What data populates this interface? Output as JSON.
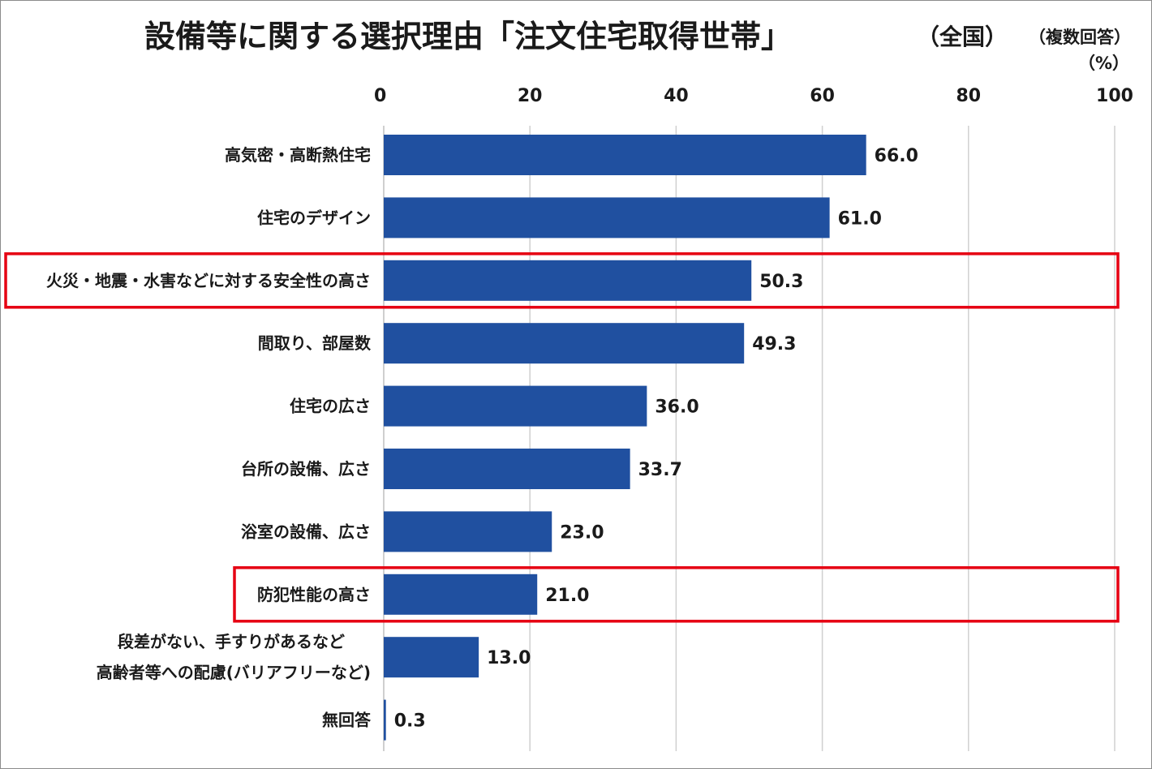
{
  "header": {
    "title": "設備等に関する選択理由「注文住宅取得世帯」",
    "subtitle": "（全国）",
    "note": "（複数回答）",
    "unit": "（%）"
  },
  "chart_data": {
    "type": "bar",
    "orientation": "horizontal",
    "title": "設備等に関する選択理由「注文住宅取得世帯」",
    "xlabel": "",
    "ylabel": "",
    "xlim": [
      0,
      100
    ],
    "x_ticks": [
      "0",
      "20",
      "40",
      "60",
      "80",
      "100"
    ],
    "categories": [
      [
        "高気密・高断熱住宅"
      ],
      [
        "住宅のデザイン"
      ],
      [
        "火災・地震・水害などに対する安全性の高さ"
      ],
      [
        "間取り、部屋数"
      ],
      [
        "住宅の広さ"
      ],
      [
        "台所の設備、広さ"
      ],
      [
        "浴室の設備、広さ"
      ],
      [
        "防犯性能の高さ"
      ],
      [
        "段差がない、手すりがあるなど",
        "高齢者等への配慮(バリアフリーなど)"
      ],
      [
        "無回答"
      ]
    ],
    "values": [
      66.0,
      61.0,
      50.3,
      49.3,
      36.0,
      33.7,
      23.0,
      21.0,
      13.0,
      0.3
    ],
    "value_labels": [
      "66.0",
      "61.0",
      "50.3",
      "49.3",
      "36.0",
      "33.7",
      "23.0",
      "21.0",
      "13.0",
      "0.3"
    ],
    "highlighted": [
      2,
      7
    ],
    "grid": true,
    "legend": "none",
    "colors": {
      "bar": "#2050a0",
      "highlight_box": "#e60012",
      "grid": "#d0d0d0"
    }
  }
}
